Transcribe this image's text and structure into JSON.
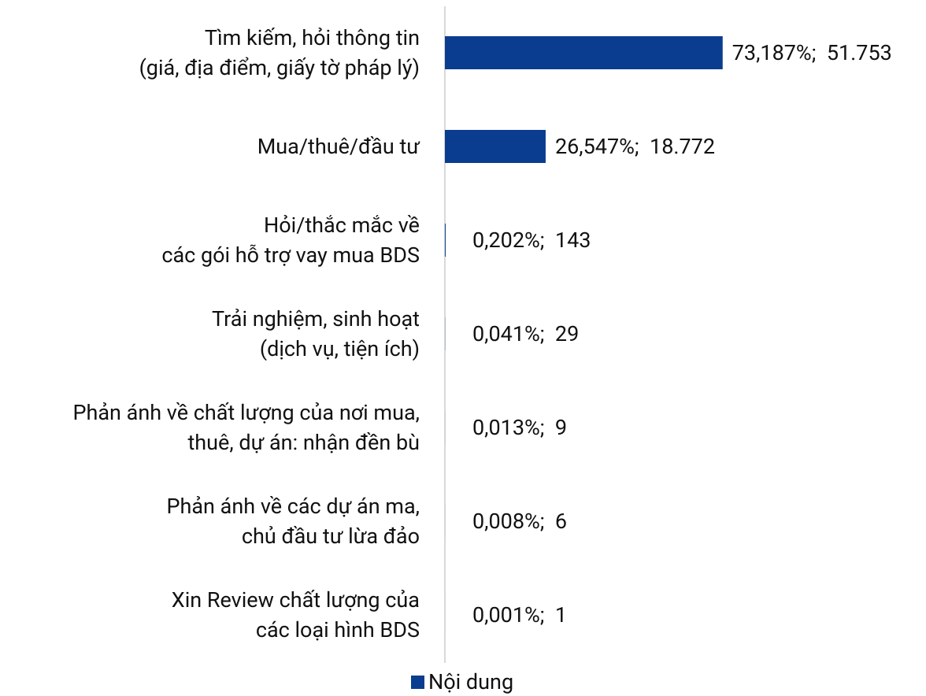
{
  "chart_data": {
    "type": "hbar",
    "categories": [
      "Tìm kiếm, hỏi thông tin\n(giá, địa điểm, giấy tờ pháp lý)",
      "Mua/thuê/đầu tư",
      "Hỏi/thắc mắc về\ncác gói hỗ trợ vay mua BDS",
      "Trải nghiệm, sinh hoạt\n(dịch vụ, tiện ích)",
      "Phản ánh về chất lượng của nơi mua,\nthuê, dự án: nhận đền bù",
      "Phản ánh về các dự án ma,\nchủ đầu tư lừa đảo",
      "Xin Review chất lượng của\ncác loại hình BDS"
    ],
    "series": [
      {
        "name": "Nội dung",
        "color": "#0a3d8f",
        "values": [
          73.187,
          26.547,
          0.202,
          0.041,
          0.013,
          0.008,
          0.001
        ],
        "value_labels": [
          "73,187%;  51.753",
          "26,547%;  18.772",
          "0,202%;  143",
          "0,041%;  29",
          "0,013%;  9",
          "0,008%;  6",
          "0,001%;  1"
        ]
      }
    ]
  }
}
